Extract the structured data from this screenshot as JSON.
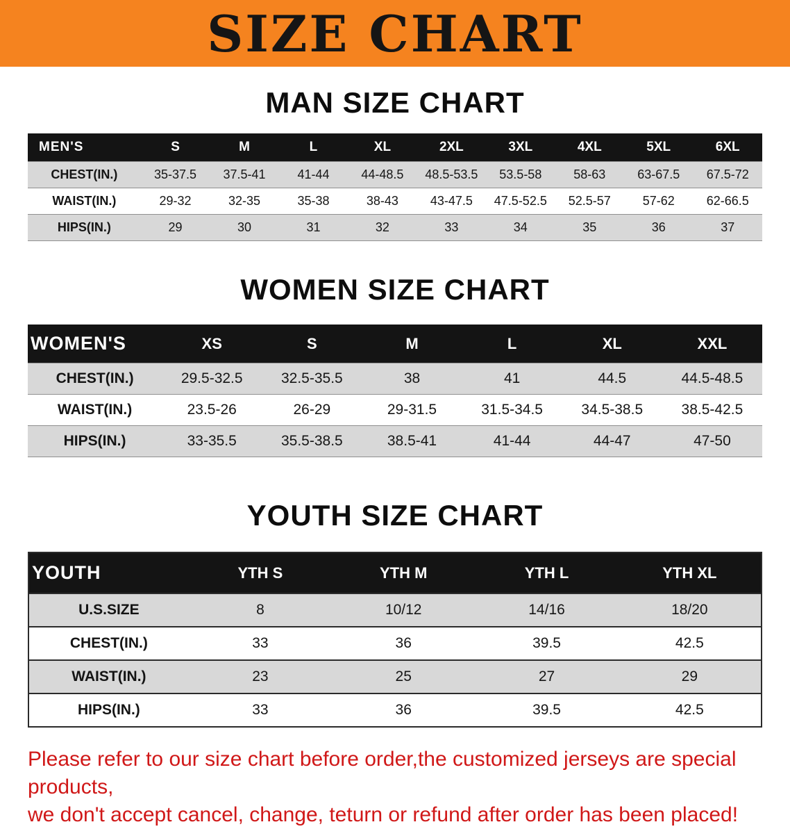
{
  "banner": {
    "title": "SIZE CHART",
    "bg_color": "#f5831f",
    "text_color": "#151515"
  },
  "chart_data": [
    {
      "type": "table",
      "title": "MAN SIZE CHART",
      "header": [
        "MEN'S",
        "S",
        "M",
        "L",
        "XL",
        "2XL",
        "3XL",
        "4XL",
        "5XL",
        "6XL"
      ],
      "rows": [
        [
          "CHEST(IN.)",
          "35-37.5",
          "37.5-41",
          "41-44",
          "44-48.5",
          "48.5-53.5",
          "53.5-58",
          "58-63",
          "63-67.5",
          "67.5-72"
        ],
        [
          "WAIST(IN.)",
          "29-32",
          "32-35",
          "35-38",
          "38-43",
          "43-47.5",
          "47.5-52.5",
          "52.5-57",
          "57-62",
          "62-66.5"
        ],
        [
          "HIPS(IN.)",
          "29",
          "30",
          "31",
          "32",
          "33",
          "34",
          "35",
          "36",
          "37"
        ]
      ]
    },
    {
      "type": "table",
      "title": "WOMEN SIZE CHART",
      "header": [
        "WOMEN'S",
        "XS",
        "S",
        "M",
        "L",
        "XL",
        "XXL"
      ],
      "rows": [
        [
          "CHEST(IN.)",
          "29.5-32.5",
          "32.5-35.5",
          "38",
          "41",
          "44.5",
          "44.5-48.5"
        ],
        [
          "WAIST(IN.)",
          "23.5-26",
          "26-29",
          "29-31.5",
          "31.5-34.5",
          "34.5-38.5",
          "38.5-42.5"
        ],
        [
          "HIPS(IN.)",
          "33-35.5",
          "35.5-38.5",
          "38.5-41",
          "41-44",
          "44-47",
          "47-50"
        ]
      ]
    },
    {
      "type": "table",
      "title": "YOUTH SIZE CHART",
      "header": [
        "YOUTH",
        "YTH S",
        "YTH M",
        "YTH L",
        "YTH XL"
      ],
      "rows": [
        [
          "U.S.SIZE",
          "8",
          "10/12",
          "14/16",
          "18/20"
        ],
        [
          "CHEST(IN.)",
          "33",
          "36",
          "39.5",
          "42.5"
        ],
        [
          "WAIST(IN.)",
          "23",
          "25",
          "27",
          "29"
        ],
        [
          "HIPS(IN.)",
          "33",
          "36",
          "39.5",
          "42.5"
        ]
      ]
    }
  ],
  "disclaimer": {
    "color": "#d01818",
    "lines": [
      "Please refer to our size chart before order,the customized jerseys are special products,",
      "we don't accept cancel, change, teturn or refund after order has been placed!"
    ]
  }
}
